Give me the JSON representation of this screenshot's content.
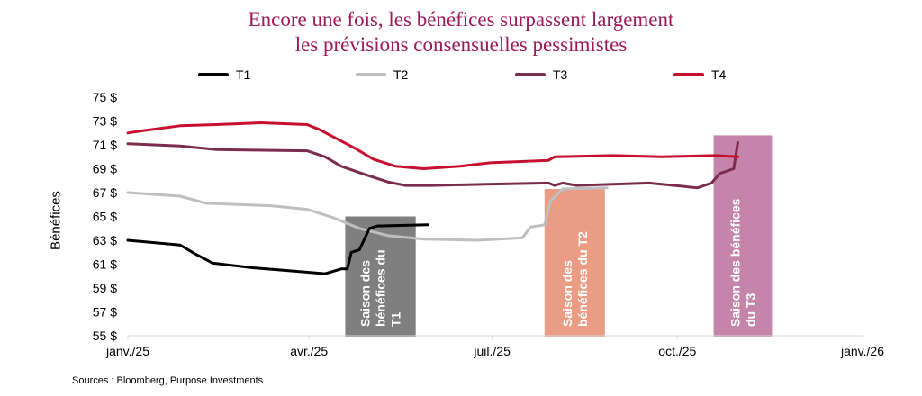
{
  "title_line1": "Encore une fois, les bénéfices surpassent largement",
  "title_line2": "les prévisions consensuelles pessimistes",
  "source": "Sources : Bloomberg, Purpose Investments",
  "chart_data": {
    "type": "line",
    "title": "Encore une fois, les bénéfices surpassent largement les prévisions consensuelles pessimistes",
    "xlabel": "",
    "ylabel": "Bénéfices",
    "xlim": [
      "2025-01-01",
      "2026-01-01"
    ],
    "ylim": [
      55,
      75
    ],
    "x_ticks": [
      {
        "date": "2025-01-01",
        "label": "janv./25"
      },
      {
        "date": "2025-04-01",
        "label": "avr./25"
      },
      {
        "date": "2025-07-01",
        "label": "juil./25"
      },
      {
        "date": "2025-10-01",
        "label": "oct./25"
      },
      {
        "date": "2026-01-01",
        "label": "janv./26"
      }
    ],
    "y_ticks": [
      55,
      57,
      59,
      61,
      63,
      65,
      67,
      69,
      71,
      73,
      75
    ],
    "y_tick_format": "{v} $",
    "grid": false,
    "legend": "top",
    "series": [
      {
        "name": "T1",
        "color": "#000000",
        "points": [
          [
            "2025-01-01",
            63.0
          ],
          [
            "2025-01-27",
            62.6
          ],
          [
            "2025-02-03",
            61.9
          ],
          [
            "2025-02-12",
            61.1
          ],
          [
            "2025-03-04",
            60.7
          ],
          [
            "2025-03-26",
            60.4
          ],
          [
            "2025-04-09",
            60.2
          ],
          [
            "2025-04-17",
            60.6
          ],
          [
            "2025-04-20",
            60.6
          ],
          [
            "2025-04-22",
            62.0
          ],
          [
            "2025-04-26",
            62.2
          ],
          [
            "2025-05-01",
            64.0
          ],
          [
            "2025-05-05",
            64.2
          ],
          [
            "2025-05-30",
            64.3
          ]
        ]
      },
      {
        "name": "T2",
        "color": "#bfbfbf",
        "points": [
          [
            "2025-01-01",
            67.0
          ],
          [
            "2025-01-27",
            66.7
          ],
          [
            "2025-02-09",
            66.1
          ],
          [
            "2025-03-13",
            65.9
          ],
          [
            "2025-03-31",
            65.6
          ],
          [
            "2025-04-13",
            64.9
          ],
          [
            "2025-04-26",
            64.0
          ],
          [
            "2025-05-10",
            63.4
          ],
          [
            "2025-05-28",
            63.1
          ],
          [
            "2025-06-24",
            63.0
          ],
          [
            "2025-07-16",
            63.2
          ],
          [
            "2025-07-20",
            64.1
          ],
          [
            "2025-07-27",
            64.3
          ],
          [
            "2025-07-30",
            66.3
          ],
          [
            "2025-08-05",
            67.3
          ],
          [
            "2025-08-27",
            67.4
          ]
        ]
      },
      {
        "name": "T3",
        "color": "#7b2d4e",
        "points": [
          [
            "2025-01-01",
            71.1
          ],
          [
            "2025-01-27",
            70.9
          ],
          [
            "2025-02-14",
            70.6
          ],
          [
            "2025-03-31",
            70.5
          ],
          [
            "2025-04-09",
            70.0
          ],
          [
            "2025-04-17",
            69.2
          ],
          [
            "2025-04-29",
            68.5
          ],
          [
            "2025-05-10",
            67.9
          ],
          [
            "2025-05-19",
            67.6
          ],
          [
            "2025-06-01",
            67.6
          ],
          [
            "2025-06-28",
            67.7
          ],
          [
            "2025-07-29",
            67.8
          ],
          [
            "2025-08-01",
            67.6
          ],
          [
            "2025-08-05",
            67.8
          ],
          [
            "2025-08-12",
            67.6
          ],
          [
            "2025-09-17",
            67.8
          ],
          [
            "2025-10-11",
            67.4
          ],
          [
            "2025-10-18",
            67.8
          ],
          [
            "2025-10-22",
            68.6
          ],
          [
            "2025-10-29",
            69.0
          ],
          [
            "2025-10-31",
            71.2
          ]
        ]
      },
      {
        "name": "T4",
        "color": "#c8102e",
        "points": [
          [
            "2025-01-01",
            72.0
          ],
          [
            "2025-01-09",
            72.2
          ],
          [
            "2025-01-27",
            72.6
          ],
          [
            "2025-02-14",
            72.7
          ],
          [
            "2025-03-08",
            72.85
          ],
          [
            "2025-03-31",
            72.7
          ],
          [
            "2025-04-06",
            72.3
          ],
          [
            "2025-04-15",
            71.5
          ],
          [
            "2025-04-24",
            70.7
          ],
          [
            "2025-05-03",
            69.8
          ],
          [
            "2025-05-14",
            69.2
          ],
          [
            "2025-05-28",
            69.0
          ],
          [
            "2025-06-15",
            69.2
          ],
          [
            "2025-06-30",
            69.5
          ],
          [
            "2025-07-29",
            69.7
          ],
          [
            "2025-08-01",
            70.0
          ],
          [
            "2025-08-30",
            70.1
          ],
          [
            "2025-09-23",
            70.0
          ],
          [
            "2025-10-20",
            70.1
          ],
          [
            "2025-10-31",
            70.0
          ]
        ]
      }
    ],
    "annotations": [
      {
        "label": "Saison des bénéfices du T1",
        "lines": [
          "Saison des",
          "bénéfices du",
          "T1"
        ],
        "start": "2025-04-19",
        "end": "2025-05-24",
        "top": 65.0,
        "color": "#7f7f7f"
      },
      {
        "label": "Saison des bénéfices du T2",
        "lines": [
          "Saison des",
          "bénéfices du T2"
        ],
        "start": "2025-07-27",
        "end": "2025-08-26",
        "top": 67.3,
        "color": "#eb9c84"
      },
      {
        "label": "Saison des bénéfices du T3",
        "lines": [
          "Saison des bénéfices",
          "du T3"
        ],
        "start": "2025-10-19",
        "end": "2025-11-17",
        "top": 71.8,
        "color": "#c585ab"
      }
    ]
  }
}
